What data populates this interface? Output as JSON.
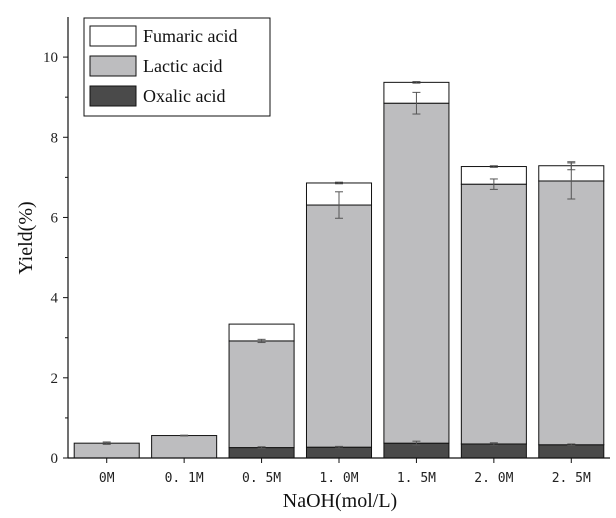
{
  "chart_data": {
    "type": "bar",
    "stacked": true,
    "categories": [
      "0M",
      "0.1M",
      "0.5M",
      "1.0M",
      "1.5M",
      "2.0M",
      "2.5M"
    ],
    "category_labels": [
      "0M",
      "0. 1M",
      "0. 5M",
      "1. 0M",
      "1. 5M",
      "2. 0M",
      "2. 5M"
    ],
    "series": [
      {
        "name": "Oxalic acid",
        "color": "#4a4a4a",
        "values": [
          0,
          0,
          0.26,
          0.27,
          0.37,
          0.35,
          0.33
        ],
        "errors": [
          0,
          0,
          0.02,
          0.02,
          0.05,
          0.03,
          0.02
        ]
      },
      {
        "name": "Lactic acid",
        "color": "#bdbdbf",
        "values": [
          0.37,
          0.56,
          2.66,
          6.04,
          8.48,
          6.48,
          6.58
        ],
        "errors": [
          0.03,
          0.01,
          0.04,
          0.33,
          0.27,
          0.13,
          0.45
        ]
      },
      {
        "name": "Fumaric acid",
        "color": "#ffffff",
        "values": [
          0,
          0,
          0.42,
          0.55,
          0.52,
          0.44,
          0.38
        ],
        "errors": [
          0,
          0,
          0,
          0.02,
          0.02,
          0.02,
          0.1
        ]
      }
    ],
    "xlabel": "NaOH(mol/L)",
    "ylabel": "Yield(%)",
    "ylim": [
      0,
      11
    ],
    "yticks": [
      0,
      2,
      4,
      6,
      8,
      10
    ],
    "grid": false,
    "legend_position": "top-left"
  }
}
